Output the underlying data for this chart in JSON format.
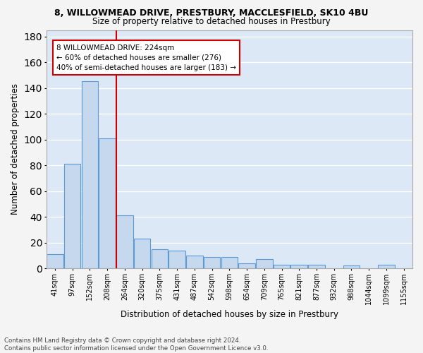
{
  "title1": "8, WILLOWMEAD DRIVE, PRESTBURY, MACCLESFIELD, SK10 4BU",
  "title2": "Size of property relative to detached houses in Prestbury",
  "xlabel": "Distribution of detached houses by size in Prestbury",
  "ylabel": "Number of detached properties",
  "footer1": "Contains HM Land Registry data © Crown copyright and database right 2024.",
  "footer2": "Contains public sector information licensed under the Open Government Licence v3.0.",
  "categories": [
    "41sqm",
    "97sqm",
    "152sqm",
    "208sqm",
    "264sqm",
    "320sqm",
    "375sqm",
    "431sqm",
    "487sqm",
    "542sqm",
    "598sqm",
    "654sqm",
    "709sqm",
    "765sqm",
    "821sqm",
    "877sqm",
    "932sqm",
    "988sqm",
    "1044sqm",
    "1099sqm",
    "1155sqm"
  ],
  "values": [
    11,
    81,
    145,
    101,
    41,
    23,
    15,
    14,
    10,
    9,
    9,
    4,
    7,
    3,
    3,
    3,
    0,
    2,
    0,
    3,
    0
  ],
  "bar_color": "#c5d8ed",
  "bar_edge_color": "#5b9bd5",
  "background_color": "#dce8f5",
  "grid_color": "#ffffff",
  "vline_x": 3.5,
  "vline_color": "#cc0000",
  "annotation_line1": "8 WILLOWMEAD DRIVE: 224sqm",
  "annotation_line2": "← 60% of detached houses are smaller (276)",
  "annotation_line3": "40% of semi-detached houses are larger (183) →",
  "annotation_box_color": "#ffffff",
  "annotation_box_edge": "#cc0000",
  "ylim": [
    0,
    185
  ],
  "yticks": [
    0,
    20,
    40,
    60,
    80,
    100,
    120,
    140,
    160,
    180
  ]
}
